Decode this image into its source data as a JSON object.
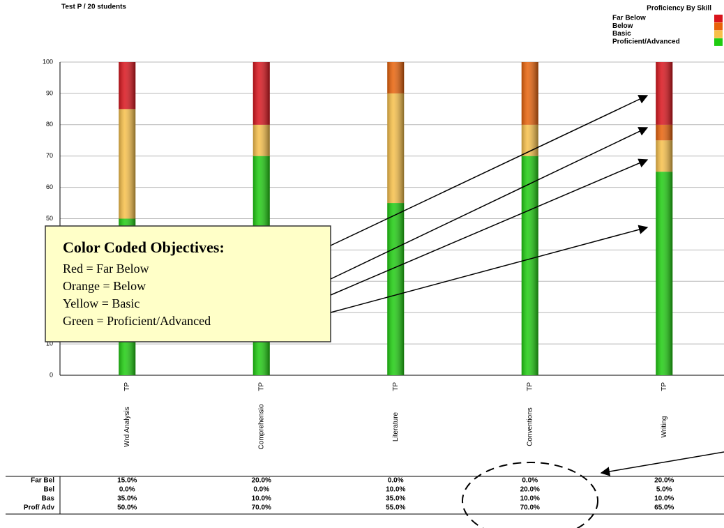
{
  "chart_data": {
    "type": "stacked_bar",
    "subtitle": "Test P / 20 students",
    "legend_title": "Proficiency By Skill",
    "categories": [
      "Wrd Analysis",
      "Comprehensio",
      "Literature",
      "Conventions",
      "Writing"
    ],
    "category_codes": [
      "TP",
      "TP",
      "TP",
      "TP",
      "TP"
    ],
    "series": [
      {
        "name": "Far Below",
        "color": "#d9141c",
        "values": [
          15,
          20,
          0,
          0,
          20
        ],
        "value_labels": [
          "15.0%",
          "20.0%",
          "0.0%",
          "0.0%",
          "20.0%"
        ]
      },
      {
        "name": "Below",
        "color": "#e8620a",
        "values": [
          0,
          0,
          10,
          20,
          5
        ],
        "value_labels": [
          "0.0%",
          "0.0%",
          "10.0%",
          "20.0%",
          "5.0%"
        ]
      },
      {
        "name": "Basic",
        "color": "#f7c04a",
        "values": [
          35,
          10,
          35,
          10,
          10
        ],
        "value_labels": [
          "35.0%",
          "10.0%",
          "35.0%",
          "10.0%",
          "10.0%"
        ]
      },
      {
        "name": "Proficient/Advanced",
        "color": "#1fcc10",
        "values": [
          50,
          70,
          55,
          70,
          65
        ],
        "value_labels": [
          "50.0%",
          "70.0%",
          "55.0%",
          "70.0%",
          "65.0%"
        ]
      }
    ],
    "table_rows": [
      "Far Bel",
      "Bel",
      "Bas",
      "Prof/ Adv"
    ],
    "ylim": [
      0,
      100
    ],
    "yticks": [
      0,
      10,
      20,
      30,
      40,
      50,
      60,
      70,
      80,
      90,
      100
    ],
    "grid": true
  },
  "callout": {
    "title": "Color Coded Objectives:",
    "lines": [
      "Red = Far Below",
      "Orange = Below",
      "Yellow = Basic",
      "Green = Proficient/Advanced"
    ]
  }
}
